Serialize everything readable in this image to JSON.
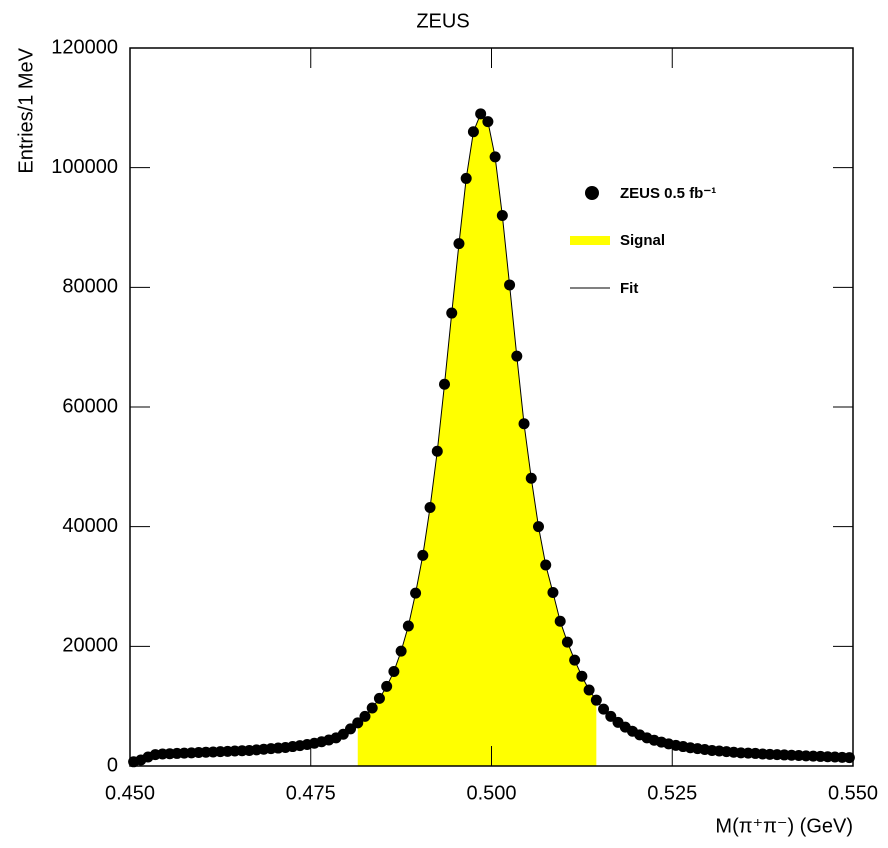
{
  "chart_data": {
    "type": "scatter",
    "title": "ZEUS",
    "x_label": "M(π⁺π⁻) (GeV)",
    "y_label": "Entries/1 MeV",
    "x": [
      0.4505,
      0.4515,
      0.4525,
      0.4535,
      0.4545,
      0.4555,
      0.4565,
      0.4575,
      0.4585,
      0.4595,
      0.4605,
      0.4615,
      0.4625,
      0.4635,
      0.4645,
      0.4655,
      0.4665,
      0.4675,
      0.4685,
      0.4695,
      0.4705,
      0.4715,
      0.4725,
      0.4735,
      0.4745,
      0.4755,
      0.4765,
      0.4775,
      0.4785,
      0.4795,
      0.4805,
      0.4815,
      0.4825,
      0.4835,
      0.4845,
      0.4855,
      0.4865,
      0.4875,
      0.4885,
      0.4895,
      0.4905,
      0.4915,
      0.4925,
      0.4935,
      0.4945,
      0.4955,
      0.4965,
      0.4975,
      0.4985,
      0.4995,
      0.5005,
      0.5015,
      0.5025,
      0.5035,
      0.5045,
      0.5055,
      0.5065,
      0.5075,
      0.5085,
      0.5095,
      0.5105,
      0.5115,
      0.5125,
      0.5135,
      0.5145,
      0.5155,
      0.5165,
      0.5175,
      0.5185,
      0.5195,
      0.5205,
      0.5215,
      0.5225,
      0.5235,
      0.5245,
      0.5255,
      0.5265,
      0.5275,
      0.5285,
      0.5295,
      0.5305,
      0.5315,
      0.5325,
      0.5335,
      0.5345,
      0.5355,
      0.5365,
      0.5375,
      0.5385,
      0.5395,
      0.5405,
      0.5415,
      0.5425,
      0.5435,
      0.5445,
      0.5455,
      0.5465,
      0.5475,
      0.5485,
      0.5495
    ],
    "series": [
      {
        "name": "ZEUS 0.5 fb⁻¹",
        "color": "#000000",
        "values": [
          700,
          1000,
          1500,
          1900,
          2000,
          2050,
          2100,
          2150,
          2200,
          2250,
          2300,
          2350,
          2400,
          2450,
          2500,
          2550,
          2600,
          2700,
          2800,
          2900,
          3000,
          3100,
          3250,
          3400,
          3600,
          3800,
          4050,
          4350,
          4700,
          5300,
          6200,
          7200,
          8300,
          9700,
          11300,
          13300,
          15800,
          19200,
          23400,
          28900,
          35200,
          43200,
          52600,
          63800,
          75700,
          87300,
          98200,
          106000,
          109000,
          107700,
          101800,
          92000,
          80400,
          68500,
          57200,
          48100,
          40000,
          33600,
          29000,
          24200,
          20700,
          17700,
          15000,
          12700,
          11000,
          9500,
          8300,
          7300,
          6500,
          5800,
          5200,
          4700,
          4300,
          4000,
          3700,
          3450,
          3250,
          3050,
          2900,
          2750,
          2600,
          2500,
          2400,
          2300,
          2200,
          2150,
          2100,
          2000,
          1950,
          1900,
          1850,
          1800,
          1750,
          1700,
          1650,
          1600,
          1550,
          1500,
          1450,
          1400
        ]
      },
      {
        "name": "Signal",
        "color": "#ffff00",
        "range": [
          0.4815,
          0.5145
        ]
      },
      {
        "name": "Fit",
        "color": "#000000"
      }
    ],
    "xlim": [
      0.45,
      0.55
    ],
    "ylim": [
      0,
      120000
    ],
    "xticks": [
      {
        "value": 0.45,
        "label": "0.450"
      },
      {
        "value": 0.475,
        "label": "0.475"
      },
      {
        "value": 0.5,
        "label": "0.500"
      },
      {
        "value": 0.525,
        "label": "0.525"
      },
      {
        "value": 0.55,
        "label": "0.550"
      }
    ],
    "yticks": [
      0,
      20000,
      40000,
      60000,
      80000,
      100000,
      120000
    ]
  }
}
